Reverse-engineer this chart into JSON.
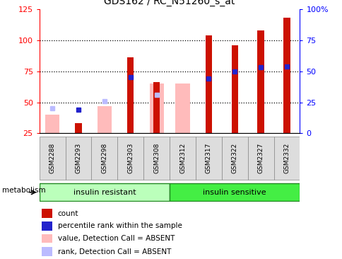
{
  "title": "GDS162 / RC_N51260_s_at",
  "samples": [
    "GSM2288",
    "GSM2293",
    "GSM2298",
    "GSM2303",
    "GSM2308",
    "GSM2312",
    "GSM2317",
    "GSM2322",
    "GSM2327",
    "GSM2332"
  ],
  "red_bars": [
    null,
    33,
    null,
    86,
    66,
    null,
    104,
    96,
    108,
    118
  ],
  "blue_dots": [
    null,
    44,
    null,
    70,
    null,
    null,
    69,
    75,
    78,
    79
  ],
  "pink_bars": [
    40,
    null,
    47,
    null,
    65,
    65,
    null,
    null,
    null,
    null
  ],
  "light_blue_dots": [
    45,
    null,
    51,
    null,
    56,
    null,
    null,
    null,
    null,
    null
  ],
  "groups": [
    {
      "label": "insulin resistant",
      "start": 0,
      "end": 5,
      "color": "#bbffbb"
    },
    {
      "label": "insulin sensitive",
      "start": 5,
      "end": 10,
      "color": "#44ee44"
    }
  ],
  "group_label": "metabolism",
  "ylim_left": [
    25,
    125
  ],
  "ylim_right": [
    0,
    100
  ],
  "yticks_left": [
    25,
    50,
    75,
    100,
    125
  ],
  "yticks_right": [
    0,
    25,
    50,
    75,
    100
  ],
  "ytick_labels_right": [
    "0",
    "25",
    "50",
    "75",
    "100%"
  ],
  "background_color": "#ffffff",
  "plot_bg": "#ffffff",
  "red_color": "#cc1100",
  "blue_color": "#2222cc",
  "pink_color": "#ffbbbb",
  "light_blue_color": "#bbbbff",
  "legend_items": [
    {
      "color": "#cc1100",
      "label": "count"
    },
    {
      "color": "#2222cc",
      "label": "percentile rank within the sample"
    },
    {
      "color": "#ffbbbb",
      "label": "value, Detection Call = ABSENT"
    },
    {
      "color": "#bbbbff",
      "label": "rank, Detection Call = ABSENT"
    }
  ]
}
